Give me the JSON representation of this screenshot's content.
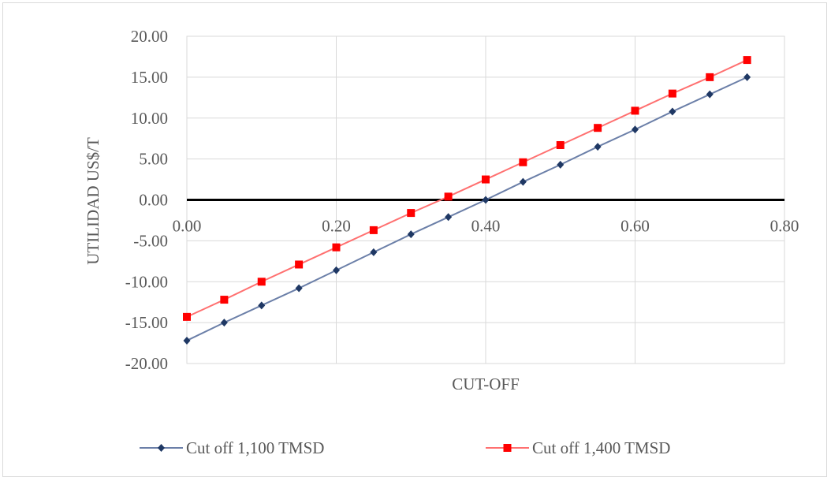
{
  "chart_data": {
    "type": "line",
    "title": "",
    "xlabel": "CUT-OFF",
    "ylabel": "UTILIDAD US$/T",
    "xlim": [
      0,
      0.8
    ],
    "ylim": [
      -20,
      20
    ],
    "x_ticks": [
      "0.00",
      "0.20",
      "0.40",
      "0.60",
      "0.80"
    ],
    "y_ticks": [
      "20.00",
      "15.00",
      "10.00",
      "5.00",
      "0.00",
      "-5.00",
      "-10.00",
      "-15.00",
      "-20.00"
    ],
    "grid": true,
    "legend_position": "bottom",
    "x": [
      0.0,
      0.05,
      0.1,
      0.15,
      0.2,
      0.25,
      0.3,
      0.35,
      0.4,
      0.45,
      0.5,
      0.55,
      0.6,
      0.65,
      0.7,
      0.75
    ],
    "series": [
      {
        "name": "Cut off 1,100 TMSD",
        "color": "#1f3864",
        "line_color": "#6b7fa8",
        "marker": "diamond",
        "values": [
          -17.2,
          -15.0,
          -12.9,
          -10.8,
          -8.6,
          -6.4,
          -4.2,
          -2.1,
          0.0,
          2.2,
          4.3,
          6.5,
          8.6,
          10.8,
          12.9,
          15.0
        ]
      },
      {
        "name": "Cut off 1,400 TMSD",
        "color": "#ff0000",
        "line_color": "#ff7070",
        "marker": "square",
        "values": [
          -14.3,
          -12.2,
          -10.0,
          -7.9,
          -5.8,
          -3.7,
          -1.6,
          0.4,
          2.5,
          4.6,
          6.7,
          8.8,
          10.9,
          13.0,
          15.0,
          17.1
        ]
      }
    ]
  }
}
